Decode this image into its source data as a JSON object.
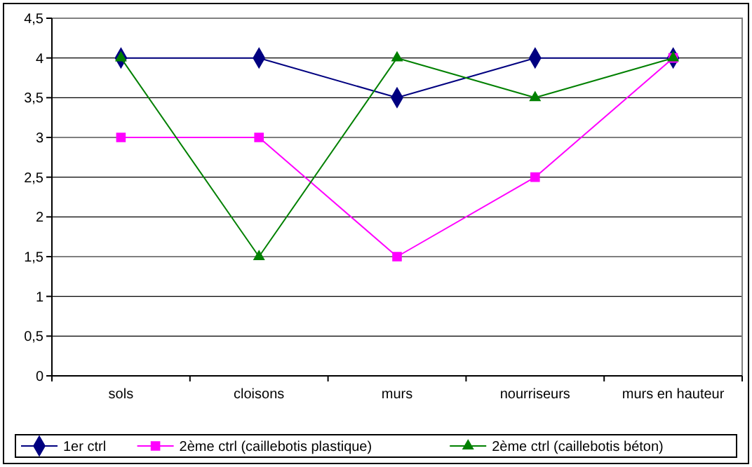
{
  "chart_data": {
    "type": "line",
    "categories": [
      "sols",
      "cloisons",
      "murs",
      "nourriseurs",
      "murs en hauteur"
    ],
    "series": [
      {
        "name": "1er ctrl",
        "color": "#000080",
        "marker": "diamond",
        "values": [
          4,
          4,
          3.5,
          4,
          4
        ]
      },
      {
        "name": "2ème ctrl (caillebotis plastique)",
        "color": "#ff00ff",
        "marker": "square",
        "values": [
          3,
          3,
          1.5,
          2.5,
          4
        ]
      },
      {
        "name": "2ème ctrl (caillebotis béton)",
        "color": "#008000",
        "marker": "triangle",
        "values": [
          4,
          1.5,
          4,
          3.5,
          4
        ]
      }
    ],
    "ylim": [
      0,
      4.5
    ],
    "yticks": [
      0,
      {
        "value": 0.5,
        "label": "0,5"
      },
      1,
      {
        "value": 1.5,
        "label": "1,5"
      },
      2,
      {
        "value": 2.5,
        "label": "2,5"
      },
      3,
      {
        "value": 3.5,
        "label": "3,5"
      },
      4,
      {
        "value": 4.5,
        "label": "4,5"
      }
    ],
    "grid": "y",
    "legend": "bottom",
    "line_style": "solid"
  }
}
